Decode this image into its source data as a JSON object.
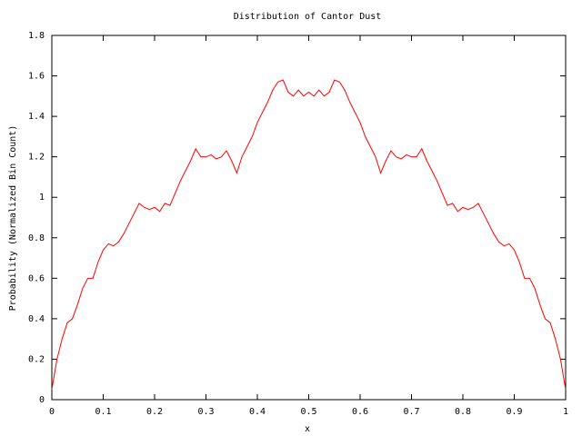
{
  "chart_data": {
    "type": "line",
    "title": "Distribution of Cantor Dust",
    "xlabel": "x",
    "ylabel": "Probability (Normalized Bin Count)",
    "color": "#ff0000",
    "x": [
      0,
      0.01,
      0.02,
      0.03,
      0.04,
      0.05,
      0.06,
      0.07,
      0.08,
      0.09,
      0.1,
      0.11,
      0.12,
      0.13,
      0.14,
      0.15,
      0.16,
      0.17,
      0.18,
      0.19,
      0.2,
      0.21,
      0.22,
      0.23,
      0.24,
      0.25,
      0.26,
      0.27,
      0.28,
      0.29,
      0.3,
      0.31,
      0.32,
      0.33,
      0.34,
      0.35,
      0.36,
      0.37,
      0.38,
      0.39,
      0.4,
      0.41,
      0.42,
      0.43,
      0.44,
      0.45,
      0.46,
      0.47,
      0.48,
      0.49,
      0.5,
      0.51,
      0.52,
      0.53,
      0.54,
      0.55,
      0.56,
      0.57,
      0.58,
      0.59,
      0.6,
      0.61,
      0.62,
      0.63,
      0.64,
      0.65,
      0.66,
      0.67,
      0.68,
      0.69,
      0.7,
      0.71,
      0.72,
      0.73,
      0.74,
      0.75,
      0.76,
      0.77,
      0.78,
      0.79,
      0.8,
      0.81,
      0.82,
      0.83,
      0.84,
      0.85,
      0.86,
      0.87,
      0.88,
      0.89,
      0.9,
      0.91,
      0.92,
      0.93,
      0.94,
      0.95,
      0.96,
      0.97,
      0.98,
      0.99,
      1
    ],
    "values": [
      0.05,
      0.2,
      0.3,
      0.38,
      0.4,
      0.47,
      0.55,
      0.6,
      0.6,
      0.68,
      0.74,
      0.77,
      0.76,
      0.78,
      0.82,
      0.87,
      0.92,
      0.97,
      0.95,
      0.94,
      0.95,
      0.93,
      0.97,
      0.96,
      1.02,
      1.08,
      1.13,
      1.18,
      1.24,
      1.2,
      1.2,
      1.21,
      1.19,
      1.2,
      1.23,
      1.18,
      1.12,
      1.2,
      1.25,
      1.3,
      1.37,
      1.42,
      1.47,
      1.53,
      1.57,
      1.58,
      1.52,
      1.5,
      1.53,
      1.5,
      1.52,
      1.5,
      1.53,
      1.5,
      1.52,
      1.58,
      1.57,
      1.53,
      1.47,
      1.42,
      1.37,
      1.3,
      1.25,
      1.2,
      1.12,
      1.18,
      1.23,
      1.2,
      1.19,
      1.21,
      1.2,
      1.2,
      1.24,
      1.18,
      1.13,
      1.08,
      1.02,
      0.96,
      0.97,
      0.93,
      0.95,
      0.94,
      0.95,
      0.97,
      0.92,
      0.87,
      0.82,
      0.78,
      0.76,
      0.77,
      0.74,
      0.68,
      0.6,
      0.6,
      0.55,
      0.47,
      0.4,
      0.38,
      0.3,
      0.2,
      0.05
    ],
    "xlim": [
      0,
      1
    ],
    "xticks": [
      0,
      0.1,
      0.2,
      0.3,
      0.4,
      0.5,
      0.6,
      0.7,
      0.8,
      0.9,
      1
    ],
    "ylim": [
      0,
      1.8
    ],
    "yticks": [
      0,
      0.2,
      0.4,
      0.6,
      0.8,
      1,
      1.2,
      1.4,
      1.6,
      1.8
    ]
  }
}
